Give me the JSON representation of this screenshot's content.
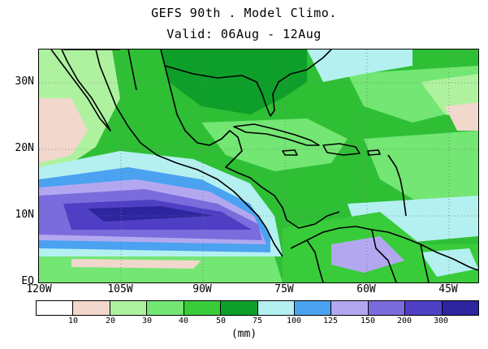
{
  "title": {
    "line1": "GEFS 90th . Model Climo.",
    "line2": "Valid: 06Aug - 12Aug"
  },
  "map": {
    "lat_labels": [
      "30N",
      "20N",
      "10N",
      "EQ"
    ],
    "lon_labels": [
      "120W",
      "105W",
      "90W",
      "75W",
      "60W",
      "45W"
    ],
    "region": "Central America, Caribbean and tropical North Atlantic",
    "grid": "dotted",
    "coastlines_color": "#000000"
  },
  "legend": {
    "units": "(mm)",
    "ticks": [
      "10",
      "20",
      "30",
      "40",
      "50",
      "75",
      "100",
      "125",
      "150",
      "200",
      "300"
    ],
    "colors": [
      "#ffffff",
      "#f2d7cd",
      "#aef2a0",
      "#73e673",
      "#39cc3a",
      "#0e9f2a",
      "#b4f0f0",
      "#4aa2f0",
      "#b3a8f0",
      "#7a6cdc",
      "#4f3fc4",
      "#2d249f"
    ]
  }
}
